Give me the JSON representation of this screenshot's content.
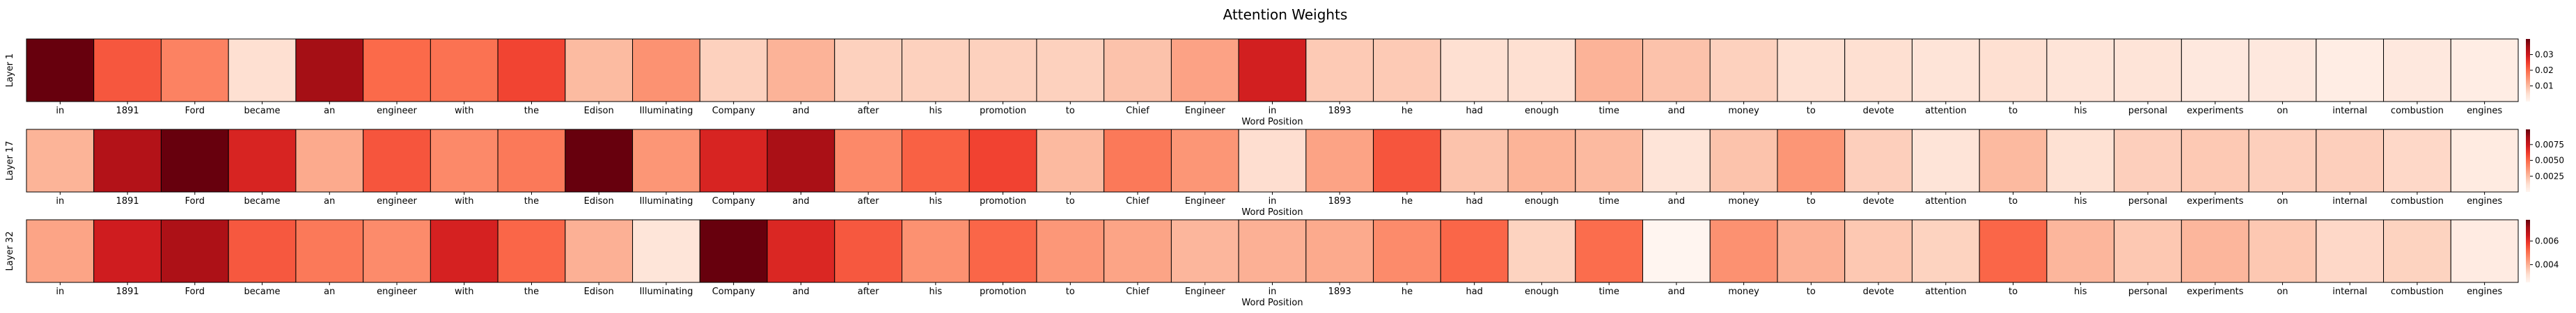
{
  "figure": {
    "title": "Attention Weights"
  },
  "chart_data": [
    {
      "type": "heatmap",
      "ylabel": "Layer 1",
      "xlabel": "Word Position",
      "categories": [
        "in",
        "1891",
        "Ford",
        "became",
        "an",
        "engineer",
        "with",
        "the",
        "Edison",
        "Illuminating",
        "Company",
        "and",
        "after",
        "his",
        "promotion",
        "to",
        "Chief",
        "Engineer",
        "in",
        "1893",
        "he",
        "had",
        "enough",
        "time",
        "and",
        "money",
        "to",
        "devote",
        "attention",
        "to",
        "his",
        "personal",
        "experiments",
        "on",
        "internal",
        "combustion",
        "engines"
      ],
      "values": [
        0.04,
        0.022,
        0.017,
        0.005,
        0.035,
        0.02,
        0.019,
        0.024,
        0.01,
        0.015,
        0.007,
        0.011,
        0.007,
        0.007,
        0.007,
        0.007,
        0.009,
        0.013,
        0.029,
        0.008,
        0.008,
        0.005,
        0.005,
        0.011,
        0.009,
        0.007,
        0.005,
        0.005,
        0.004,
        0.005,
        0.004,
        0.004,
        0.003,
        0.003,
        0.002,
        0.003,
        0.002
      ],
      "colorbar": {
        "min": 0.0,
        "max": 0.04,
        "ticks": [
          0.01,
          0.02,
          0.03
        ],
        "tick_labels": [
          "0.01",
          "0.02",
          "0.03"
        ]
      },
      "cmap": [
        "#fff5f0",
        "#fee0d2",
        "#fcbba1",
        "#fc9272",
        "#fb6a4a",
        "#ef3b2c",
        "#cb181d",
        "#a50f15",
        "#67000d"
      ]
    },
    {
      "type": "heatmap",
      "ylabel": "Layer 17",
      "xlabel": "Word Position",
      "categories": [
        "in",
        "1891",
        "Ford",
        "became",
        "an",
        "engineer",
        "with",
        "the",
        "Edison",
        "Illuminating",
        "Company",
        "and",
        "after",
        "his",
        "promotion",
        "to",
        "Chief",
        "Engineer",
        "in",
        "1893",
        "he",
        "had",
        "enough",
        "time",
        "and",
        "money",
        "to",
        "devote",
        "attention",
        "to",
        "his",
        "personal",
        "experiments",
        "on",
        "internal",
        "combustion",
        "engines"
      ],
      "values": [
        0.0027,
        0.0082,
        0.0099,
        0.007,
        0.003,
        0.0055,
        0.004,
        0.0045,
        0.0099,
        0.0036,
        0.007,
        0.0085,
        0.004,
        0.0052,
        0.006,
        0.0025,
        0.0045,
        0.0036,
        0.0013,
        0.0032,
        0.0055,
        0.0022,
        0.0027,
        0.0025,
        0.001,
        0.0022,
        0.0036,
        0.0018,
        0.001,
        0.0025,
        0.0012,
        0.0018,
        0.002,
        0.0018,
        0.0018,
        0.0015,
        0.0006
      ],
      "colorbar": {
        "min": 0.0,
        "max": 0.0099,
        "ticks": [
          0.0025,
          0.005,
          0.0075
        ],
        "tick_labels": [
          "0.0025",
          "0.0050",
          "0.0075"
        ]
      },
      "cmap": [
        "#fff5f0",
        "#fee0d2",
        "#fcbba1",
        "#fc9272",
        "#fb6a4a",
        "#ef3b2c",
        "#cb181d",
        "#a50f15",
        "#67000d"
      ]
    },
    {
      "type": "heatmap",
      "ylabel": "Layer 32",
      "xlabel": "Word Position",
      "categories": [
        "in",
        "1891",
        "Ford",
        "became",
        "an",
        "engineer",
        "with",
        "the",
        "Edison",
        "Illuminating",
        "Company",
        "and",
        "after",
        "his",
        "promotion",
        "to",
        "Chief",
        "Engineer",
        "in",
        "1893",
        "he",
        "had",
        "enough",
        "time",
        "and",
        "money",
        "to",
        "devote",
        "attention",
        "to",
        "his",
        "personal",
        "experiments",
        "on",
        "internal",
        "combustion",
        "engines"
      ],
      "values": [
        0.0042,
        0.0064,
        0.007,
        0.0054,
        0.0049,
        0.0046,
        0.0063,
        0.0052,
        0.004,
        0.003,
        0.0078,
        0.0062,
        0.0054,
        0.0045,
        0.0052,
        0.0044,
        0.0042,
        0.0039,
        0.004,
        0.0041,
        0.0046,
        0.0052,
        0.0034,
        0.0051,
        0.0025,
        0.0045,
        0.004,
        0.0036,
        0.0034,
        0.0052,
        0.0039,
        0.0036,
        0.0039,
        0.0036,
        0.0033,
        0.0034,
        0.0028
      ],
      "colorbar": {
        "min": 0.0025,
        "max": 0.0078,
        "ticks": [
          0.004,
          0.006
        ],
        "tick_labels": [
          "0.004",
          "0.006"
        ]
      },
      "cmap": [
        "#fff5f0",
        "#fee0d2",
        "#fcbba1",
        "#fc9272",
        "#fb6a4a",
        "#ef3b2c",
        "#cb181d",
        "#a50f15",
        "#67000d"
      ]
    }
  ]
}
